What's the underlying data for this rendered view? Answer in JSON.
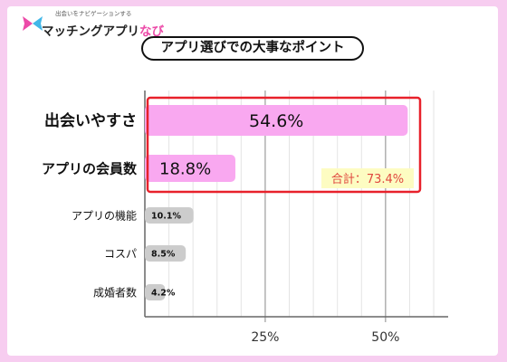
{
  "brand": {
    "tagline": "出会いをナビゲーションする",
    "name_main": "マッチングアプリ",
    "name_accent": "なび",
    "logo_icon": "butterfly-x-icon"
  },
  "colors": {
    "background": "#f7cdf0",
    "bar_highlight": "#f9a8f0",
    "bar_other": "#cccccc",
    "frame_red": "#e8212b",
    "total_badge_fill": "#fdfcc2",
    "total_badge_text": "#e0483f"
  },
  "chart_data": {
    "type": "bar",
    "orientation": "horizontal",
    "title": "アプリ選びでの大事なポイント",
    "categories": [
      "出会いやすさ",
      "アプリの会員数",
      "アプリの機能",
      "コスパ",
      "成婚者数"
    ],
    "values": [
      54.6,
      18.8,
      10.1,
      8.5,
      4.2
    ],
    "value_labels": [
      "54.6%",
      "18.8%",
      "10.1%",
      "8.5%",
      "4.2%"
    ],
    "highlighted": [
      true,
      true,
      false,
      false,
      false
    ],
    "xlim": [
      0,
      63
    ],
    "xticks": [
      25,
      50
    ],
    "xtick_labels": [
      "25%",
      "50%"
    ],
    "grid": "vertical-lines",
    "annotation": "合計：73.4%"
  }
}
